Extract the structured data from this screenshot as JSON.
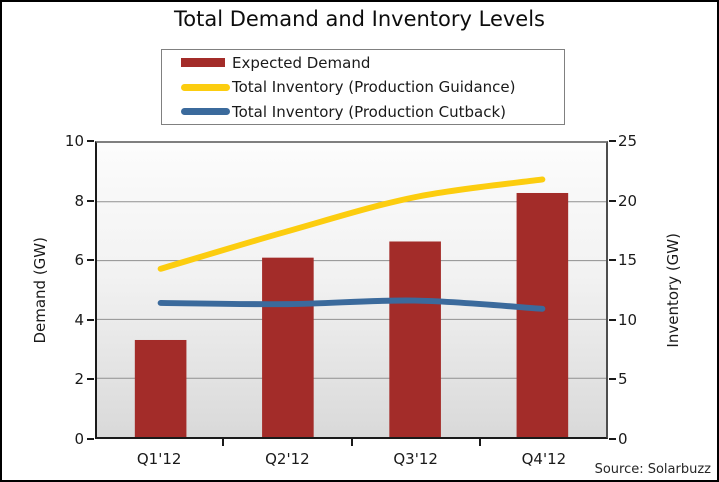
{
  "title": "Total Demand and Inventory Levels",
  "source": "Source: Solarbuzz",
  "colors": {
    "bar": "#A32C29",
    "guidance_line": "#FCCD0F",
    "cutback_line": "#3B6A9C",
    "gridline": "#909090",
    "axis": "#1A1A1A",
    "legend_border": "#808080"
  },
  "chart_data": {
    "type": "bar",
    "title": "Total Demand and Inventory Levels",
    "categories": [
      "Q1'12",
      "Q2'12",
      "Q3'12",
      "Q4'12"
    ],
    "series": [
      {
        "name": "Expected Demand",
        "type": "bar",
        "axis": "left",
        "color": "#A32C29",
        "values": [
          3.3,
          6.1,
          6.65,
          8.3
        ]
      },
      {
        "name": "Total Inventory (Production Guidance)",
        "type": "line",
        "axis": "right",
        "color": "#FCCD0F",
        "values": [
          14.3,
          17.5,
          20.4,
          21.9
        ]
      },
      {
        "name": "Total Inventory (Production Cutback)",
        "type": "line",
        "axis": "right",
        "color": "#3B6A9C",
        "values": [
          11.4,
          11.3,
          11.6,
          10.9
        ]
      }
    ],
    "left_axis": {
      "label": "Demand (GW)",
      "min": 0,
      "max": 10,
      "ticks": [
        0,
        2,
        4,
        6,
        8,
        10
      ]
    },
    "right_axis": {
      "label": "Inventory (GW)",
      "min": 0,
      "max": 25,
      "ticks": [
        0,
        5,
        10,
        15,
        20,
        25
      ]
    },
    "legend_position": "top-center",
    "grid": true,
    "annotation": "Source: Solarbuzz"
  }
}
